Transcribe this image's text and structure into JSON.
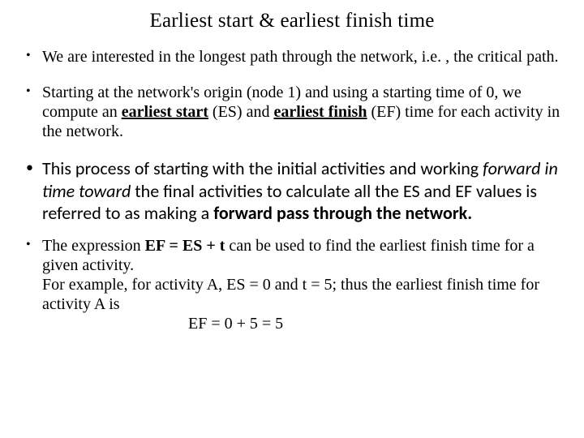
{
  "title": "Earliest start & earliest finish time",
  "bullet1": "We are interested in the longest path through the network, i.e. , the critical path.",
  "bullet2": {
    "p1": "Starting at the network's origin (node 1) and using a starting time of 0, we compute an ",
    "es": "earliest start",
    "p2": " (ES) and ",
    "ef": "earliest finish",
    "p3": " (EF) time for each activity in the network."
  },
  "bullet3": {
    "p1": "This process of starting with the initial activities and working ",
    "i1": "forward in time toward ",
    "p2": "the final activities to calculate all the ES and EF values is referred to as making a ",
    "b1": "forward pass through the network."
  },
  "bullet4": {
    "p1": "The expression ",
    "eq": "EF = ES + t ",
    "p2": "can be used to find the earliest finish time for a given activity.",
    "p3": "For example, for activity A, ES = 0 and t = 5; thus the earliest finish time for activity A is",
    "p4": "EF = 0 + 5 = 5"
  }
}
